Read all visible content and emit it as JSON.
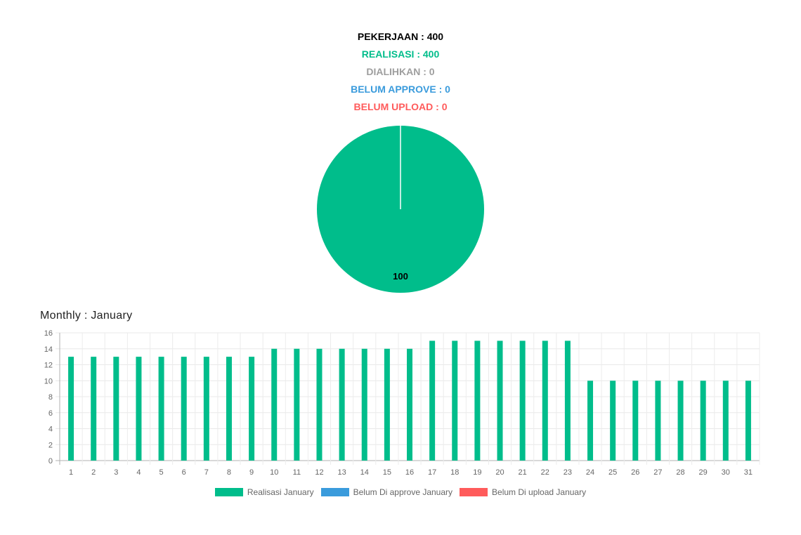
{
  "summary": {
    "pekerjaan": "PEKERJAAN : 400",
    "realisasi": "REALISASI : 400",
    "dialihkan": "DIALIHKAN : 0",
    "belum_approve": "BELUM APPROVE : 0",
    "belum_upload": "BELUM UPLOAD : 0"
  },
  "colors": {
    "pekerjaan": "#000000",
    "realisasi": "#00bd8b",
    "dialihkan": "#9e9e9e",
    "belum_approve": "#3a9bdc",
    "belum_upload": "#ff5b5b"
  },
  "monthly_title": "Monthly : January",
  "chart_data": [
    {
      "type": "pie",
      "categories": [
        "Realisasi",
        "Dialihkan",
        "Belum Approve",
        "Belum Upload"
      ],
      "values": [
        100,
        0,
        0,
        0
      ],
      "data_labels": [
        "100"
      ],
      "colors": [
        "#00bd8b",
        "#9e9e9e",
        "#3a9bdc",
        "#ff5b5b"
      ]
    },
    {
      "type": "bar",
      "title": "Monthly : January",
      "categories": [
        "1",
        "2",
        "3",
        "4",
        "5",
        "6",
        "7",
        "8",
        "9",
        "10",
        "11",
        "12",
        "13",
        "14",
        "15",
        "16",
        "17",
        "18",
        "19",
        "20",
        "21",
        "22",
        "23",
        "24",
        "25",
        "26",
        "27",
        "28",
        "29",
        "30",
        "31"
      ],
      "series": [
        {
          "name": "Realisasi January",
          "color": "#00bd8b",
          "values": [
            13,
            13,
            13,
            13,
            13,
            13,
            13,
            13,
            13,
            14,
            14,
            14,
            14,
            14,
            14,
            14,
            15,
            15,
            15,
            15,
            15,
            15,
            15,
            10,
            10,
            10,
            10,
            10,
            10,
            10,
            10
          ]
        },
        {
          "name": "Belum Di approve January",
          "color": "#3a9bdc",
          "values": [
            0,
            0,
            0,
            0,
            0,
            0,
            0,
            0,
            0,
            0,
            0,
            0,
            0,
            0,
            0,
            0,
            0,
            0,
            0,
            0,
            0,
            0,
            0,
            0,
            0,
            0,
            0,
            0,
            0,
            0,
            0
          ]
        },
        {
          "name": "Belum Di upload January",
          "color": "#ff5b5b",
          "values": [
            0,
            0,
            0,
            0,
            0,
            0,
            0,
            0,
            0,
            0,
            0,
            0,
            0,
            0,
            0,
            0,
            0,
            0,
            0,
            0,
            0,
            0,
            0,
            0,
            0,
            0,
            0,
            0,
            0,
            0,
            0
          ]
        }
      ],
      "yticks": [
        "0",
        "2",
        "4",
        "6",
        "8",
        "10",
        "12",
        "14",
        "16"
      ],
      "ylim": [
        0,
        16
      ],
      "grid": true,
      "legend": "bottom"
    }
  ]
}
